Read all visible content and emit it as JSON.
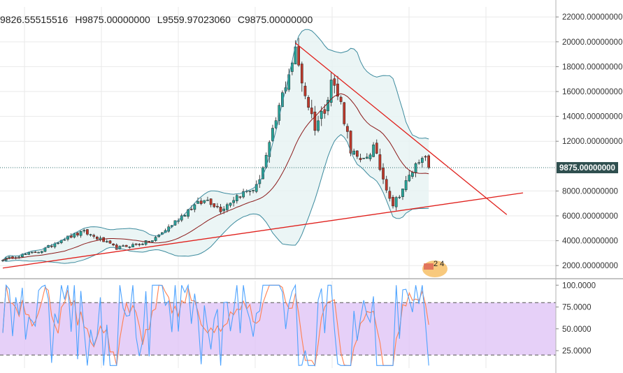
{
  "ohlc": {
    "open": "9826.55515516",
    "high": "H9875.00000000",
    "low": "L9559.97023060",
    "close": "C9875.00000000"
  },
  "logo_text": "2 4",
  "colors": {
    "up": "#26a69a",
    "down": "#c0392b",
    "bb_line": "#3d8b9e",
    "bb_fill": "#e6f2f2",
    "sma": "#8b1a1a",
    "trend": "#e0201c",
    "rsi_k": "#4da3ff",
    "rsi_d": "#ff7f50",
    "rsi_band": "#e2c8f7",
    "price_tag": "#2f4f4f",
    "grid": "#e9e9e9"
  },
  "chart_data": [
    {
      "type": "candlestick",
      "price_axis": {
        "ylim": [
          1000,
          22800
        ],
        "tick_labels": [
          "22000.00000000",
          "20000.00000000",
          "18000.00000000",
          "16000.00000000",
          "14000.00000000",
          "12000.00000000",
          "8000.00000000",
          "6000.00000000",
          "4000.00000000",
          "2000.00000000"
        ],
        "tick_values": [
          22000,
          20000,
          18000,
          16000,
          14000,
          12000,
          8000,
          6000,
          4000,
          2000
        ]
      },
      "last_price_label": "9875.00000000",
      "last_price": 9875,
      "candle_count": 132,
      "price_path_anchors": [
        [
          0,
          2500
        ],
        [
          12,
          3200
        ],
        [
          18,
          4100
        ],
        [
          25,
          4700
        ],
        [
          30,
          4100
        ],
        [
          35,
          3400
        ],
        [
          40,
          3650
        ],
        [
          46,
          4000
        ],
        [
          52,
          5300
        ],
        [
          58,
          6700
        ],
        [
          63,
          7300
        ],
        [
          67,
          6500
        ],
        [
          72,
          7600
        ],
        [
          78,
          8300
        ],
        [
          82,
          11600
        ],
        [
          86,
          15700
        ],
        [
          88,
          17600
        ],
        [
          90,
          19200
        ],
        [
          93,
          15800
        ],
        [
          96,
          13200
        ],
        [
          99,
          14700
        ],
        [
          101,
          17000
        ],
        [
          104,
          15000
        ],
        [
          107,
          11400
        ],
        [
          110,
          10200
        ],
        [
          114,
          11500
        ],
        [
          117,
          9000
        ],
        [
          120,
          6900
        ],
        [
          123,
          8200
        ],
        [
          126,
          9600
        ],
        [
          129,
          11000
        ],
        [
          131,
          9875
        ]
      ],
      "bollinger_window": 20,
      "sma_window": 20,
      "trendlines": [
        {
          "name": "resistance",
          "from": [
            90,
            19900
          ],
          "to": [
            155,
            6100
          ]
        },
        {
          "name": "support",
          "from": [
            0,
            1800
          ],
          "to": [
            160,
            7850
          ]
        }
      ]
    },
    {
      "type": "line",
      "indicator_axis": {
        "ylim": [
          5,
          105
        ],
        "tick_labels": [
          "100.0000",
          "75.0000",
          "50.0000",
          "25.0000"
        ],
        "tick_values": [
          100,
          75,
          50,
          25
        ]
      },
      "band": [
        20,
        80
      ],
      "series": [
        {
          "key": "k"
        },
        {
          "key": "d"
        }
      ]
    }
  ]
}
